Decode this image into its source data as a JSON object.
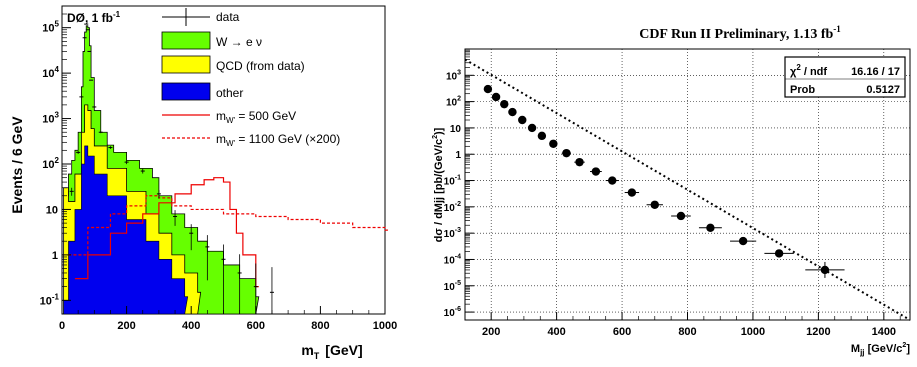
{
  "chart_data": [
    {
      "type": "histogram",
      "experiment_label": "DØ, 1 fb",
      "experiment_label_sup": "-1",
      "xlabel": "m",
      "xlabel_sub": "T",
      "xlabel_unit": "[GeV]",
      "ylabel": "Events / 6 GeV",
      "xlim": [
        0,
        1000
      ],
      "ylim": [
        0.05,
        300000
      ],
      "log_y": true,
      "x_ticks": [
        "0",
        "200",
        "400",
        "600",
        "800",
        "1000"
      ],
      "y_ticks": [
        {
          "base": "10",
          "exp": "-1",
          "value": 0.1
        },
        {
          "base": "1",
          "exp": "",
          "value": 1
        },
        {
          "base": "10",
          "exp": "",
          "value": 10
        },
        {
          "base": "10",
          "exp": "2",
          "value": 100
        },
        {
          "base": "10",
          "exp": "3",
          "value": 1000
        },
        {
          "base": "10",
          "exp": "4",
          "value": 10000
        },
        {
          "base": "10",
          "exp": "5",
          "value": 100000
        }
      ],
      "legend": [
        {
          "label": "data",
          "style": "marker",
          "color": "#000000"
        },
        {
          "label": "W → e ν",
          "style": "fill",
          "color": "#66ff00"
        },
        {
          "label": "QCD (from data)",
          "style": "fill",
          "color": "#ffff00"
        },
        {
          "label": "other",
          "style": "fill",
          "color": "#0000ee"
        },
        {
          "label": "m",
          "sub": "W'",
          "suffix": " = 500 GeV",
          "style": "line",
          "color": "#ee0000"
        },
        {
          "label": "m",
          "sub": "W'",
          "suffix": " = 1100 GeV (×200)",
          "style": "dashed",
          "color": "#ee0000"
        }
      ],
      "series": {
        "W_to_enu_stack_total": [
          [
            10,
            20
          ],
          [
            20,
            60
          ],
          [
            30,
            120
          ],
          [
            40,
            200
          ],
          [
            50,
            500
          ],
          [
            60,
            5000
          ],
          [
            65,
            30000
          ],
          [
            70,
            80000
          ],
          [
            75,
            110000
          ],
          [
            80,
            100000
          ],
          [
            85,
            40000
          ],
          [
            90,
            8000
          ],
          [
            100,
            1500
          ],
          [
            120,
            500
          ],
          [
            140,
            260
          ],
          [
            160,
            180
          ],
          [
            200,
            120
          ],
          [
            240,
            80
          ],
          [
            280,
            50
          ],
          [
            300,
            20
          ],
          [
            340,
            8
          ],
          [
            380,
            4
          ],
          [
            420,
            2
          ],
          [
            450,
            1.2
          ],
          [
            500,
            0.6
          ],
          [
            550,
            0.3
          ],
          [
            600,
            0.12
          ]
        ],
        "QCD": [
          [
            5,
            30
          ],
          [
            20,
            15
          ],
          [
            40,
            60
          ],
          [
            60,
            500
          ],
          [
            70,
            2000
          ],
          [
            80,
            1500
          ],
          [
            90,
            600
          ],
          [
            100,
            250
          ],
          [
            140,
            80
          ],
          [
            200,
            25
          ],
          [
            260,
            8
          ],
          [
            300,
            3
          ],
          [
            340,
            1
          ],
          [
            380,
            0.4
          ],
          [
            420,
            0.15
          ]
        ],
        "other": [
          [
            5,
            0.1
          ],
          [
            20,
            2
          ],
          [
            40,
            10
          ],
          [
            60,
            100
          ],
          [
            70,
            250
          ],
          [
            80,
            150
          ],
          [
            100,
            60
          ],
          [
            140,
            20
          ],
          [
            200,
            6
          ],
          [
            260,
            2
          ],
          [
            300,
            0.8
          ],
          [
            340,
            0.3
          ],
          [
            380,
            0.12
          ]
        ],
        "Wprime_500": [
          [
            40,
            0.3
          ],
          [
            80,
            1
          ],
          [
            150,
            3
          ],
          [
            200,
            5
          ],
          [
            250,
            8
          ],
          [
            300,
            14
          ],
          [
            350,
            22
          ],
          [
            400,
            35
          ],
          [
            440,
            45
          ],
          [
            470,
            50
          ],
          [
            500,
            40
          ],
          [
            520,
            10
          ],
          [
            540,
            3
          ],
          [
            560,
            1
          ],
          [
            600,
            0.2
          ]
        ],
        "Wprime_1100_x200": [
          [
            20,
            1
          ],
          [
            80,
            4
          ],
          [
            150,
            8
          ],
          [
            200,
            12
          ],
          [
            260,
            20
          ],
          [
            300,
            18
          ],
          [
            340,
            12
          ],
          [
            400,
            10
          ],
          [
            500,
            8
          ],
          [
            600,
            7
          ],
          [
            700,
            6
          ],
          [
            800,
            5
          ],
          [
            900,
            4
          ],
          [
            1000,
            3.5
          ]
        ],
        "data": [
          [
            30,
            25
          ],
          [
            50,
            180
          ],
          [
            60,
            3000
          ],
          [
            70,
            60000
          ],
          [
            75,
            120000
          ],
          [
            80,
            90000
          ],
          [
            85,
            30000
          ],
          [
            90,
            7000
          ],
          [
            100,
            1800
          ],
          [
            120,
            500
          ],
          [
            150,
            230
          ],
          [
            200,
            110
          ],
          [
            250,
            70
          ],
          [
            300,
            22
          ],
          [
            350,
            7
          ],
          [
            400,
            3
          ],
          [
            450,
            1.5
          ],
          [
            500,
            0.8
          ],
          [
            550,
            0.4
          ],
          [
            600,
            0.2
          ],
          [
            650,
            0.15
          ]
        ]
      }
    },
    {
      "type": "scatter",
      "title": "CDF Run II Preliminary, 1.13 fb",
      "title_sup": "-1",
      "xlabel": "M",
      "xlabel_sub": "jj",
      "xlabel_unit": " [GeV/c",
      "xlabel_unit_sup": "2",
      "xlabel_unit_close": "]",
      "ylabel": "dσ / dMjj [pb/(GeV/c",
      "ylabel_sup": "2",
      "ylabel_close": ")]",
      "xlim": [
        120,
        1480
      ],
      "ylim": [
        5e-07,
        10000
      ],
      "log_y": true,
      "x_ticks": [
        "200",
        "400",
        "600",
        "800",
        "1000",
        "1200",
        "1400"
      ],
      "y_ticks": [
        {
          "exp": "-6",
          "value": 1e-06
        },
        {
          "exp": "-5",
          "value": 1e-05
        },
        {
          "exp": "-4",
          "value": 0.0001
        },
        {
          "exp": "-3",
          "value": 0.001
        },
        {
          "exp": "-2",
          "value": 0.01
        },
        {
          "exp": "-1",
          "value": 0.1
        },
        {
          "exp": "",
          "base": "1",
          "value": 1
        },
        {
          "exp": "",
          "base": "10",
          "value": 10
        },
        {
          "exp": "2",
          "value": 100
        },
        {
          "exp": "3",
          "value": 1000
        }
      ],
      "stats_box": [
        {
          "label": "χ",
          "label_sup": "2",
          "label_rest": " / ndf",
          "value": "16.16 / 17"
        },
        {
          "label": "Prob",
          "value": "0.5127"
        }
      ],
      "points": [
        {
          "x": 190,
          "y": 300,
          "xerr": 8
        },
        {
          "x": 215,
          "y": 150,
          "xerr": 8
        },
        {
          "x": 240,
          "y": 80,
          "xerr": 8
        },
        {
          "x": 265,
          "y": 40,
          "xerr": 10
        },
        {
          "x": 295,
          "y": 20,
          "xerr": 10
        },
        {
          "x": 325,
          "y": 10,
          "xerr": 10
        },
        {
          "x": 355,
          "y": 5,
          "xerr": 12
        },
        {
          "x": 390,
          "y": 2.5,
          "xerr": 12
        },
        {
          "x": 430,
          "y": 1.1,
          "xerr": 14
        },
        {
          "x": 470,
          "y": 0.5,
          "xerr": 16
        },
        {
          "x": 520,
          "y": 0.22,
          "xerr": 18
        },
        {
          "x": 570,
          "y": 0.1,
          "xerr": 20
        },
        {
          "x": 630,
          "y": 0.035,
          "xerr": 22
        },
        {
          "x": 700,
          "y": 0.012,
          "xerr": 25
        },
        {
          "x": 780,
          "y": 0.0045,
          "xerr": 30
        },
        {
          "x": 870,
          "y": 0.0016,
          "xerr": 35
        },
        {
          "x": 970,
          "y": 0.0005,
          "xerr": 40
        },
        {
          "x": 1080,
          "y": 0.00017,
          "xerr": 45
        },
        {
          "x": 1220,
          "y": 4e-05,
          "xerr": 60
        }
      ],
      "fit_line": [
        [
          120,
          4000
        ],
        [
          1480,
          5e-07
        ]
      ],
      "grid": true
    }
  ]
}
